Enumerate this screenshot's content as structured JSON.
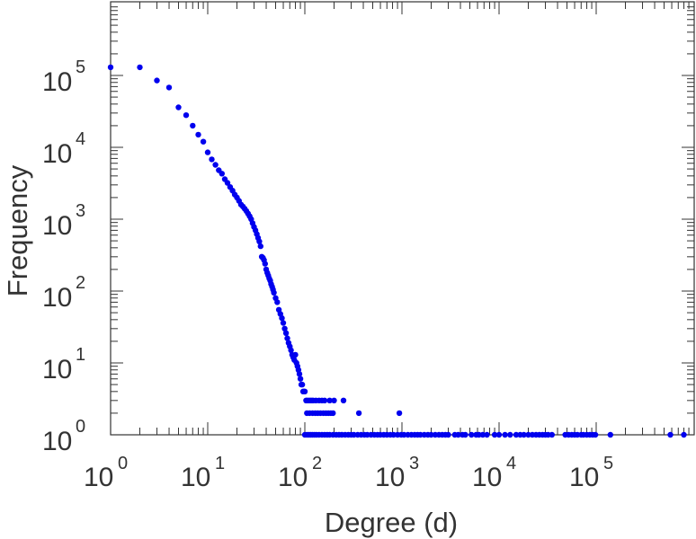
{
  "chart_data": {
    "type": "scatter",
    "title": "",
    "xlabel": "Degree (d)",
    "ylabel": "Frequency",
    "x_scale": "log",
    "y_scale": "log",
    "xlim": [
      1,
      1000000
    ],
    "ylim": [
      1,
      1000000
    ],
    "grid": false,
    "marker_color": "#0000ee",
    "x_ticks": [
      {
        "base": "10",
        "exp": "0"
      },
      {
        "base": "10",
        "exp": "1"
      },
      {
        "base": "10",
        "exp": "2"
      },
      {
        "base": "10",
        "exp": "3"
      },
      {
        "base": "10",
        "exp": "4"
      },
      {
        "base": "10",
        "exp": "5"
      }
    ],
    "y_ticks": [
      {
        "base": "10",
        "exp": "0"
      },
      {
        "base": "10",
        "exp": "1"
      },
      {
        "base": "10",
        "exp": "2"
      },
      {
        "base": "10",
        "exp": "3"
      },
      {
        "base": "10",
        "exp": "4"
      },
      {
        "base": "10",
        "exp": "5"
      }
    ],
    "series": [
      {
        "points": [
          [
            1,
            130000
          ],
          [
            2,
            130000
          ],
          [
            3,
            85000
          ],
          [
            4,
            68000
          ],
          [
            5,
            36000
          ],
          [
            6,
            28000
          ],
          [
            7,
            20000
          ],
          [
            8,
            15000
          ],
          [
            9,
            12000
          ],
          [
            10,
            8500
          ],
          [
            11,
            6800
          ],
          [
            12,
            5700
          ],
          [
            13,
            4800
          ],
          [
            14,
            4300
          ],
          [
            15,
            3600
          ],
          [
            16,
            3200
          ],
          [
            17,
            2800
          ],
          [
            18,
            2500
          ],
          [
            19,
            2200
          ],
          [
            20,
            2000
          ],
          [
            21,
            1800
          ],
          [
            22,
            1600
          ],
          [
            23,
            1500
          ],
          [
            24,
            1400
          ],
          [
            25,
            1300
          ],
          [
            26,
            1200
          ],
          [
            27,
            1100
          ],
          [
            28,
            1000
          ],
          [
            29,
            880
          ],
          [
            30,
            780
          ],
          [
            31,
            700
          ],
          [
            32,
            620
          ],
          [
            33,
            550
          ],
          [
            34,
            490
          ],
          [
            35,
            420
          ],
          [
            36,
            300
          ],
          [
            37,
            290
          ],
          [
            38,
            270
          ],
          [
            39,
            240
          ],
          [
            40,
            200
          ],
          [
            41,
            180
          ],
          [
            42,
            165
          ],
          [
            43,
            150
          ],
          [
            44,
            140
          ],
          [
            45,
            125
          ],
          [
            46,
            115
          ],
          [
            47,
            105
          ],
          [
            48,
            95
          ],
          [
            50,
            80
          ],
          [
            52,
            70
          ],
          [
            54,
            55
          ],
          [
            56,
            48
          ],
          [
            58,
            42
          ],
          [
            60,
            36
          ],
          [
            62,
            30
          ],
          [
            64,
            26
          ],
          [
            66,
            22
          ],
          [
            68,
            19
          ],
          [
            70,
            17
          ],
          [
            72,
            15
          ],
          [
            74,
            13
          ],
          [
            76,
            12
          ],
          [
            78,
            11
          ],
          [
            80,
            13
          ],
          [
            82,
            10
          ],
          [
            84,
            9
          ],
          [
            86,
            8
          ],
          [
            88,
            7
          ],
          [
            90,
            6
          ],
          [
            92,
            5
          ],
          [
            94,
            5
          ],
          [
            96,
            4
          ],
          [
            98,
            4
          ],
          [
            100,
            4
          ],
          [
            103,
            3
          ],
          [
            106,
            3
          ],
          [
            110,
            3
          ],
          [
            114,
            3
          ],
          [
            118,
            3
          ],
          [
            122,
            3
          ],
          [
            130,
            3
          ],
          [
            140,
            3
          ],
          [
            150,
            3
          ],
          [
            160,
            3
          ],
          [
            180,
            3
          ],
          [
            200,
            3
          ],
          [
            250,
            3
          ],
          [
            105,
            2
          ],
          [
            112,
            2
          ],
          [
            120,
            2
          ],
          [
            128,
            2
          ],
          [
            136,
            2
          ],
          [
            145,
            2
          ],
          [
            155,
            2
          ],
          [
            165,
            2
          ],
          [
            175,
            2
          ],
          [
            185,
            2
          ],
          [
            195,
            2
          ],
          [
            360,
            2
          ],
          [
            940,
            2
          ],
          [
            100,
            1
          ],
          [
            105,
            1
          ],
          [
            110,
            1
          ],
          [
            115,
            1
          ],
          [
            120,
            1
          ],
          [
            126,
            1
          ],
          [
            132,
            1
          ],
          [
            140,
            1
          ],
          [
            150,
            1
          ],
          [
            160,
            1
          ],
          [
            170,
            1
          ],
          [
            180,
            1
          ],
          [
            195,
            1
          ],
          [
            210,
            1
          ],
          [
            225,
            1
          ],
          [
            240,
            1
          ],
          [
            260,
            1
          ],
          [
            280,
            1
          ],
          [
            300,
            1
          ],
          [
            320,
            1
          ],
          [
            350,
            1
          ],
          [
            380,
            1
          ],
          [
            410,
            1
          ],
          [
            440,
            1
          ],
          [
            480,
            1
          ],
          [
            520,
            1
          ],
          [
            560,
            1
          ],
          [
            600,
            1
          ],
          [
            650,
            1
          ],
          [
            700,
            1
          ],
          [
            760,
            1
          ],
          [
            820,
            1
          ],
          [
            900,
            1
          ],
          [
            980,
            1
          ],
          [
            1050,
            1
          ],
          [
            1150,
            1
          ],
          [
            1250,
            1
          ],
          [
            1350,
            1
          ],
          [
            1450,
            1
          ],
          [
            1550,
            1
          ],
          [
            1700,
            1
          ],
          [
            1850,
            1
          ],
          [
            2000,
            1
          ],
          [
            2200,
            1
          ],
          [
            2400,
            1
          ],
          [
            2600,
            1
          ],
          [
            2800,
            1
          ],
          [
            3000,
            1
          ],
          [
            3500,
            1
          ],
          [
            3800,
            1
          ],
          [
            4200,
            1
          ],
          [
            4500,
            1
          ],
          [
            5200,
            1
          ],
          [
            5800,
            1
          ],
          [
            6200,
            1
          ],
          [
            6800,
            1
          ],
          [
            7500,
            1
          ],
          [
            9000,
            1
          ],
          [
            10000,
            1
          ],
          [
            11500,
            1
          ],
          [
            13000,
            1
          ],
          [
            15000,
            1
          ],
          [
            16500,
            1
          ],
          [
            18000,
            1
          ],
          [
            20000,
            1
          ],
          [
            22000,
            1
          ],
          [
            24000,
            1
          ],
          [
            26000,
            1
          ],
          [
            28000,
            1
          ],
          [
            30000,
            1
          ],
          [
            32000,
            1
          ],
          [
            35000,
            1
          ],
          [
            48000,
            1
          ],
          [
            52000,
            1
          ],
          [
            56000,
            1
          ],
          [
            60000,
            1
          ],
          [
            64000,
            1
          ],
          [
            70000,
            1
          ],
          [
            74000,
            1
          ],
          [
            80000,
            1
          ],
          [
            86000,
            1
          ],
          [
            92000,
            1
          ],
          [
            98000,
            1
          ],
          [
            140000,
            1
          ],
          [
            580000,
            1
          ],
          [
            800000,
            1
          ]
        ]
      }
    ]
  }
}
